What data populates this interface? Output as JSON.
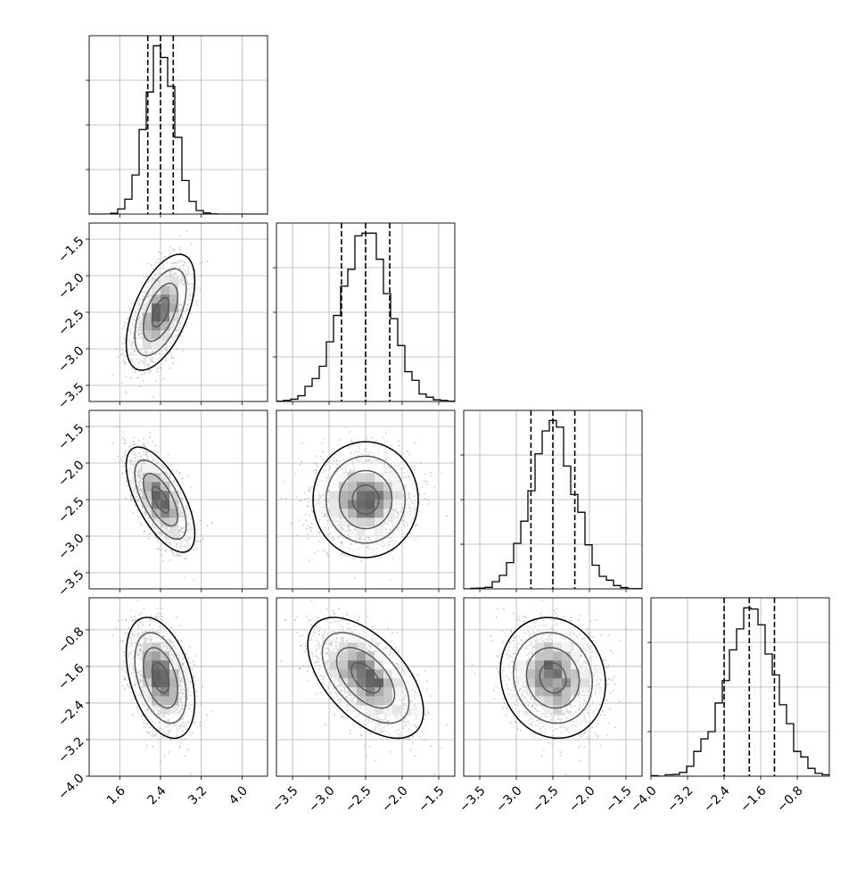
{
  "chart_data": {
    "type": "corner",
    "title": "",
    "grid": true,
    "colors": {
      "line": "#000000",
      "scatter": "#9a9a9a",
      "grid": "#b0b0b0"
    },
    "parameters": [
      {
        "name": "",
        "range": [
          1.0,
          4.5
        ],
        "ticks": [
          "1.6",
          "2.4",
          "3.2",
          "4.0"
        ],
        "tick_values": [
          1.6,
          2.4,
          3.2,
          4.0
        ],
        "quantiles": [
          2.15,
          2.4,
          2.65
        ],
        "mean": 2.4,
        "sd": 0.28
      },
      {
        "name": "",
        "range": [
          -3.72,
          -1.28
        ],
        "ticks": [
          "-3.5",
          "-3.0",
          "-2.5",
          "-2.0",
          "-1.5"
        ],
        "tick_values": [
          -3.5,
          -3.0,
          -2.5,
          -2.0,
          -1.5
        ],
        "quantiles": [
          -2.83,
          -2.5,
          -2.17
        ],
        "mean": -2.5,
        "sd": 0.33
      },
      {
        "name": "",
        "range": [
          -3.72,
          -1.28
        ],
        "ticks": [
          "-3.5",
          "-3.0",
          "-2.5",
          "-2.0",
          "-1.5"
        ],
        "tick_values": [
          -3.5,
          -3.0,
          -2.5,
          -2.0,
          -1.5
        ],
        "quantiles": [
          -2.8,
          -2.5,
          -2.2
        ],
        "mean": -2.5,
        "sd": 0.3
      },
      {
        "name": "",
        "range": [
          -4.0,
          -0.1
        ],
        "ticks": [
          "-4.0",
          "-3.2",
          "-2.4",
          "-1.6",
          "-0.8"
        ],
        "tick_values": [
          -4.0,
          -3.2,
          -2.4,
          -1.6,
          -0.8
        ],
        "quantiles": [
          -2.4,
          -1.85,
          -1.3
        ],
        "mean": -1.85,
        "sd": 0.55
      }
    ],
    "correlations": [
      {
        "pair": [
          0,
          1
        ],
        "rho": 0.55
      },
      {
        "pair": [
          0,
          2
        ],
        "rho": -0.65
      },
      {
        "pair": [
          0,
          3
        ],
        "rho": -0.4
      },
      {
        "pair": [
          1,
          2
        ],
        "rho": 0.0
      },
      {
        "pair": [
          1,
          3
        ],
        "rho": -0.55
      },
      {
        "pair": [
          2,
          3
        ],
        "rho": -0.1
      }
    ]
  }
}
